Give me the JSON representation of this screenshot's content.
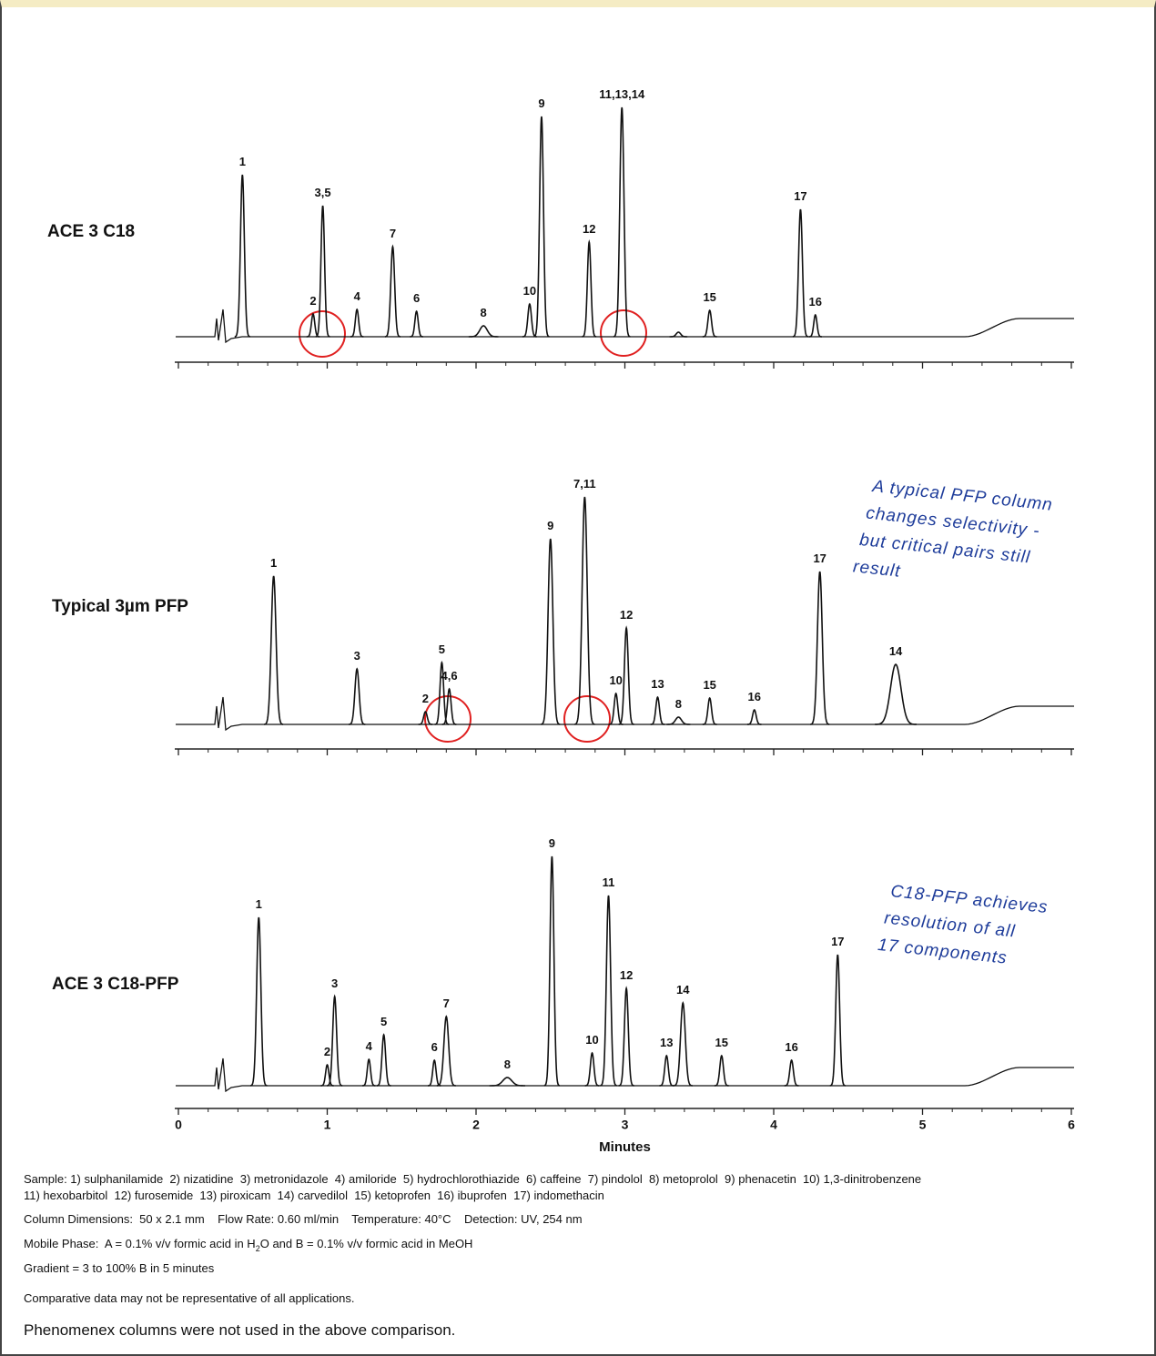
{
  "chart_data": {
    "type": "chromatogram",
    "xlabel": "Minutes",
    "xlim": [
      0,
      6
    ],
    "xticks": [
      0,
      1,
      2,
      3,
      4,
      5,
      6
    ],
    "color": "#111111",
    "series": [
      {
        "name": "ACE 3 C18",
        "labels": [
          "1",
          "2",
          "3,5",
          "4",
          "7",
          "6",
          "8",
          "10",
          "9",
          "12",
          "11,13,14",
          null,
          "15",
          "17",
          "16"
        ],
        "x": [
          0.43,
          0.905,
          0.97,
          1.2,
          1.44,
          1.6,
          2.05,
          2.36,
          2.44,
          2.76,
          2.98,
          3.36,
          3.57,
          4.18,
          4.28
        ],
        "values": [
          178,
          25,
          144,
          30,
          99,
          28,
          12,
          36,
          242,
          104,
          252,
          5,
          29,
          140,
          24
        ],
        "widths": [
          0.013,
          0.011,
          0.012,
          0.011,
          0.013,
          0.011,
          0.025,
          0.012,
          0.013,
          0.012,
          0.014,
          0.015,
          0.012,
          0.013,
          0.011
        ]
      },
      {
        "name": "Typical 3µm PFP",
        "labels": [
          "1",
          "3",
          "2",
          "5",
          "4,6",
          "9",
          "7,11",
          "10",
          "12",
          "13",
          "8",
          "15",
          "16",
          "17",
          "14"
        ],
        "x": [
          0.64,
          1.2,
          1.66,
          1.77,
          1.82,
          2.5,
          2.73,
          2.94,
          3.01,
          3.22,
          3.36,
          3.57,
          3.87,
          4.31,
          4.82
        ],
        "values": [
          163,
          61,
          14,
          68,
          39,
          204,
          250,
          34,
          106,
          30,
          8,
          29,
          16,
          168,
          66
        ],
        "widths": [
          0.016,
          0.014,
          0.012,
          0.012,
          0.012,
          0.016,
          0.017,
          0.012,
          0.013,
          0.012,
          0.02,
          0.012,
          0.012,
          0.016,
          0.035
        ]
      },
      {
        "name": "ACE 3 C18-PFP",
        "labels": [
          "1",
          "2",
          "3",
          "4",
          "5",
          "6",
          "7",
          "8",
          "9",
          "10",
          "11",
          "12",
          "13",
          "14",
          "15",
          "16",
          "17"
        ],
        "x": [
          0.54,
          1.0,
          1.05,
          1.28,
          1.38,
          1.72,
          1.8,
          2.21,
          2.51,
          2.78,
          2.89,
          3.01,
          3.28,
          3.39,
          3.65,
          4.12,
          4.43
        ],
        "values": [
          185,
          23,
          98,
          29,
          56,
          28,
          76,
          9,
          252,
          36,
          209,
          107,
          33,
          91,
          33,
          28,
          144
        ],
        "widths": [
          0.014,
          0.011,
          0.013,
          0.011,
          0.012,
          0.011,
          0.016,
          0.03,
          0.013,
          0.012,
          0.014,
          0.013,
          0.012,
          0.016,
          0.012,
          0.012,
          0.013
        ]
      }
    ],
    "annotations": [
      [
        "A typical PFP column",
        "changes selectivity -",
        "but critical pairs still",
        "result"
      ],
      [
        "C18-PFP achieves",
        "resolution of all",
        "17 components"
      ]
    ]
  },
  "notes": {
    "sample": [
      "Sample: 1) sulphanilamide  2) nizatidine  3) metronidazole  4) amiloride  5) hydrochlorothiazide  6) caffeine  7) pindolol  8) metoprolol  9) phenacetin  10) 1,3-dinitrobenzene",
      "11) hexobarbitol  12) furosemide  13) piroxicam  14) carvedilol  15) ketoprofen  16) ibuprofen  17) indomethacin"
    ],
    "conditions": "Column Dimensions:  50 x 2.1 mm    Flow Rate: 0.60 ml/min    Temperature: 40°C    Detection: UV, 254 nm",
    "mobile_phase": [
      "Mobile Phase:  A = 0.1% v/v formic acid in H",
      "2",
      "O and B = 0.1% v/v formic acid in MeOH"
    ],
    "gradient": "Gradient = 3 to 100% B in 5 minutes",
    "disclaimer": "Comparative data may not be representative of all applications.",
    "footer": "Phenomenex columns were not used in the above comparison."
  }
}
